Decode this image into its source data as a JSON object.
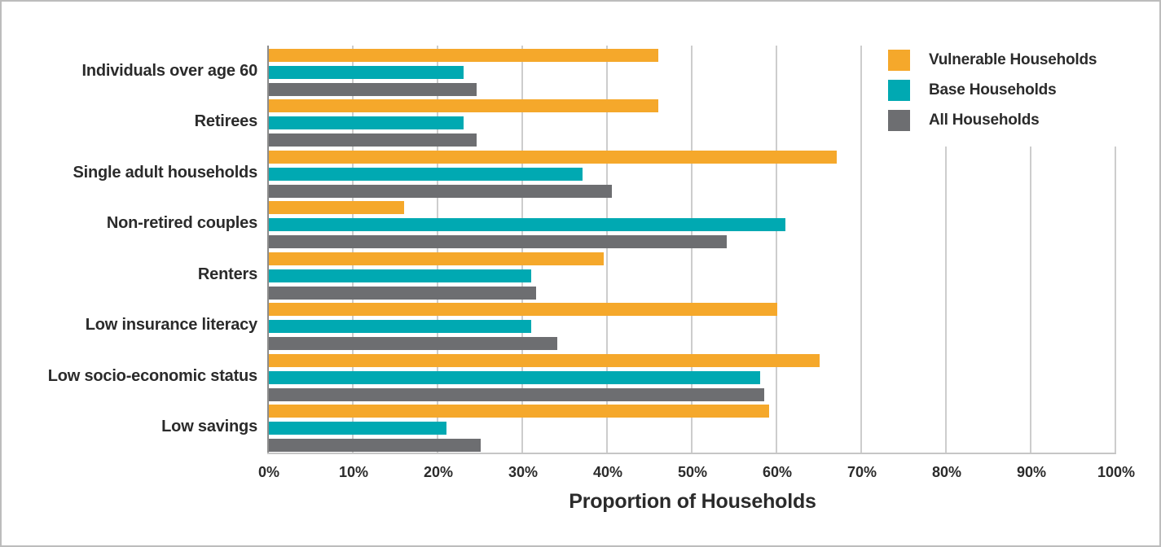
{
  "chart_data": {
    "type": "bar",
    "orientation": "horizontal",
    "title": "",
    "xlabel": "Proportion of Households",
    "ylabel": "",
    "units": "percent",
    "xlim": [
      0,
      100
    ],
    "x_ticks": [
      "0%",
      "10%",
      "20%",
      "30%",
      "40%",
      "50%",
      "60%",
      "70%",
      "80%",
      "90%",
      "100%"
    ],
    "grid": "vertical gridlines every 10%",
    "legend_position": "top-right",
    "categories": [
      "Individuals over age 60",
      "Retirees",
      "Single adult households",
      "Non-retired couples",
      "Renters",
      "Low insurance literacy",
      "Low socio-economic status",
      "Low savings"
    ],
    "series": [
      {
        "name": "Vulnerable Households",
        "color": "#F5A82B",
        "values": [
          46,
          46,
          67,
          16,
          39.5,
          60,
          65,
          59
        ]
      },
      {
        "name": "Base Households",
        "color": "#00A9B2",
        "values": [
          23,
          23,
          37,
          61,
          31,
          31,
          58,
          21
        ]
      },
      {
        "name": "All Households",
        "color": "#6D6E71",
        "values": [
          24.5,
          24.5,
          40.5,
          54,
          31.5,
          34,
          58.5,
          25
        ]
      }
    ]
  },
  "colors": {
    "background": "#ffffff",
    "frame_border": "#bcbcbc",
    "gridline": "#cdcdcd",
    "zero_axis_line": "#8c8c8c",
    "bottom_axis_line": "#c6c6c6",
    "text": "#2b2b2b"
  }
}
